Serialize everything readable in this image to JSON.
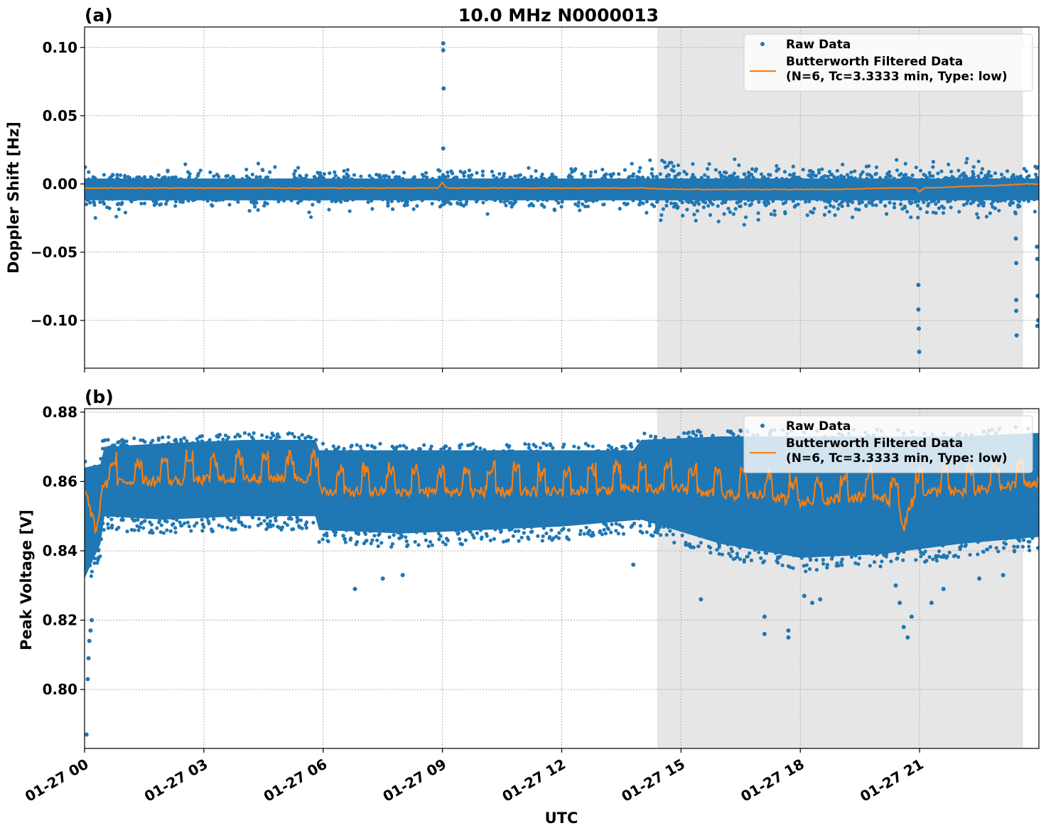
{
  "title": "10.0 MHz N0000013",
  "xlabel": "UTC",
  "legend": {
    "raw": "Raw Data",
    "filtered_line1": "Butterworth Filtered Data",
    "filtered_line2": "(N=6, Tc=3.3333 min, Type: low)"
  },
  "colors": {
    "raw": "#1f77b4",
    "filtered": "#ff7f0e",
    "shade": "#e6e6e6"
  },
  "chart_data": [
    {
      "type": "scatter",
      "panel_label": "(a)",
      "ylabel": "Doppler Shift [Hz]",
      "x_unit": "hours UTC on 01-27",
      "xlim": [
        0,
        24
      ],
      "ylim": [
        -0.135,
        0.115
      ],
      "yticks": [
        0.1,
        0.05,
        0.0,
        -0.05,
        -0.1
      ],
      "ytick_labels": [
        "0.10",
        "0.05",
        "0.00",
        "−0.05",
        "−0.10"
      ],
      "xticks": [
        0,
        3,
        6,
        9,
        12,
        15,
        18,
        21
      ],
      "xtick_labels": [
        "01-27 00",
        "01-27 03",
        "01-27 06",
        "01-27 09",
        "01-27 12",
        "01-27 15",
        "01-27 18",
        "01-27 21"
      ],
      "shaded_region": [
        14.4,
        23.6
      ],
      "grid": true,
      "legend_position": "upper right",
      "series": [
        {
          "name": "Raw Data",
          "kind": "points",
          "center": -0.004,
          "typical_spread": 0.006,
          "extreme_spread": 0.02
        },
        {
          "name": "Butterworth Filtered Data (N=6, Tc=3.3333 min, Type: low)",
          "kind": "line",
          "x": [
            0,
            1,
            2,
            3,
            4,
            5,
            6,
            7,
            8,
            8.9,
            9.0,
            9.1,
            10,
            11,
            12,
            13,
            14,
            15,
            16,
            17,
            18,
            19,
            20,
            20.9,
            21.0,
            21.1,
            22,
            23,
            23.6,
            24
          ],
          "y": [
            -0.003,
            -0.003,
            -0.003,
            -0.003,
            -0.003,
            -0.003,
            -0.003,
            -0.003,
            -0.003,
            -0.003,
            0.001,
            -0.003,
            -0.003,
            -0.003,
            -0.003,
            -0.003,
            -0.003,
            -0.004,
            -0.004,
            -0.004,
            -0.004,
            -0.004,
            -0.003,
            -0.003,
            -0.006,
            -0.003,
            -0.002,
            -0.001,
            0.0,
            0.0
          ]
        },
        {
          "name": "Raw Data outliers",
          "kind": "outliers",
          "x": [
            9.02,
            9.02,
            9.03,
            9.02,
            20.97,
            20.97,
            20.98,
            20.99,
            23.42,
            23.43,
            23.43,
            23.43,
            23.44,
            23.95,
            23.96,
            23.97,
            23.98,
            23.96
          ],
          "y": [
            0.103,
            0.098,
            0.07,
            0.026,
            -0.074,
            -0.092,
            -0.106,
            -0.123,
            -0.04,
            -0.058,
            -0.085,
            -0.093,
            -0.111,
            -0.046,
            -0.055,
            -0.082,
            -0.1,
            -0.104
          ]
        }
      ]
    },
    {
      "type": "scatter",
      "panel_label": "(b)",
      "ylabel": "Peak Voltage [V]",
      "x_unit": "hours UTC on 01-27",
      "xlim": [
        0,
        24
      ],
      "ylim": [
        0.783,
        0.881
      ],
      "yticks": [
        0.88,
        0.86,
        0.84,
        0.82,
        0.8
      ],
      "ytick_labels": [
        "0.88",
        "0.86",
        "0.84",
        "0.82",
        "0.80"
      ],
      "xticks": [
        0,
        3,
        6,
        9,
        12,
        15,
        18,
        21
      ],
      "xtick_labels": [
        "01-27 00",
        "01-27 03",
        "01-27 06",
        "01-27 09",
        "01-27 12",
        "01-27 15",
        "01-27 18",
        "01-27 21"
      ],
      "shaded_region": [
        14.4,
        23.6
      ],
      "grid": true,
      "legend_position": "upper right",
      "series": [
        {
          "name": "Raw Data",
          "kind": "band",
          "upper_x": [
            0,
            0.4,
            0.45,
            2,
            4,
            5.8,
            5.9,
            8,
            10,
            12,
            13.8,
            14,
            16,
            18,
            20,
            22,
            24
          ],
          "upper_y": [
            0.866,
            0.867,
            0.872,
            0.873,
            0.874,
            0.874,
            0.871,
            0.871,
            0.871,
            0.871,
            0.871,
            0.874,
            0.875,
            0.875,
            0.875,
            0.875,
            0.876
          ],
          "lower_x": [
            0,
            0.4,
            0.45,
            2,
            4,
            5.8,
            5.9,
            8,
            10,
            12,
            14,
            16,
            18,
            20,
            22,
            24
          ],
          "lower_y": [
            0.828,
            0.838,
            0.846,
            0.845,
            0.846,
            0.846,
            0.842,
            0.841,
            0.842,
            0.843,
            0.845,
            0.838,
            0.834,
            0.835,
            0.838,
            0.84
          ]
        },
        {
          "name": "Butterworth Filtered Data (N=6, Tc=3.3333 min, Type: low)",
          "kind": "line",
          "baseline_x": [
            0,
            0.3,
            0.45,
            1,
            2,
            4,
            5.8,
            6,
            8,
            10,
            12,
            14,
            15,
            16,
            17,
            18,
            19,
            20,
            20.5,
            20.6,
            20.7,
            21,
            22,
            23,
            24
          ],
          "baseline_y": [
            0.858,
            0.845,
            0.859,
            0.86,
            0.86,
            0.861,
            0.861,
            0.857,
            0.857,
            0.857,
            0.857,
            0.858,
            0.858,
            0.856,
            0.856,
            0.854,
            0.855,
            0.856,
            0.852,
            0.845,
            0.852,
            0.857,
            0.857,
            0.858,
            0.86
          ],
          "pulse_amplitude": 0.007
        },
        {
          "name": "Raw Data low outliers",
          "kind": "outliers",
          "x": [
            0.05,
            0.08,
            0.1,
            0.12,
            0.15,
            0.18,
            6.8,
            7.5,
            8.0,
            13.8,
            15.5,
            17.1,
            17.1,
            17.7,
            17.7,
            18.1,
            18.3,
            18.5,
            20.4,
            20.5,
            20.6,
            20.7,
            20.8,
            21.3,
            21.6,
            22.5,
            23.1
          ],
          "y": [
            0.787,
            0.803,
            0.809,
            0.814,
            0.817,
            0.82,
            0.829,
            0.832,
            0.833,
            0.836,
            0.826,
            0.816,
            0.821,
            0.815,
            0.817,
            0.827,
            0.825,
            0.826,
            0.83,
            0.825,
            0.818,
            0.815,
            0.821,
            0.825,
            0.829,
            0.832,
            0.833
          ]
        }
      ]
    }
  ]
}
